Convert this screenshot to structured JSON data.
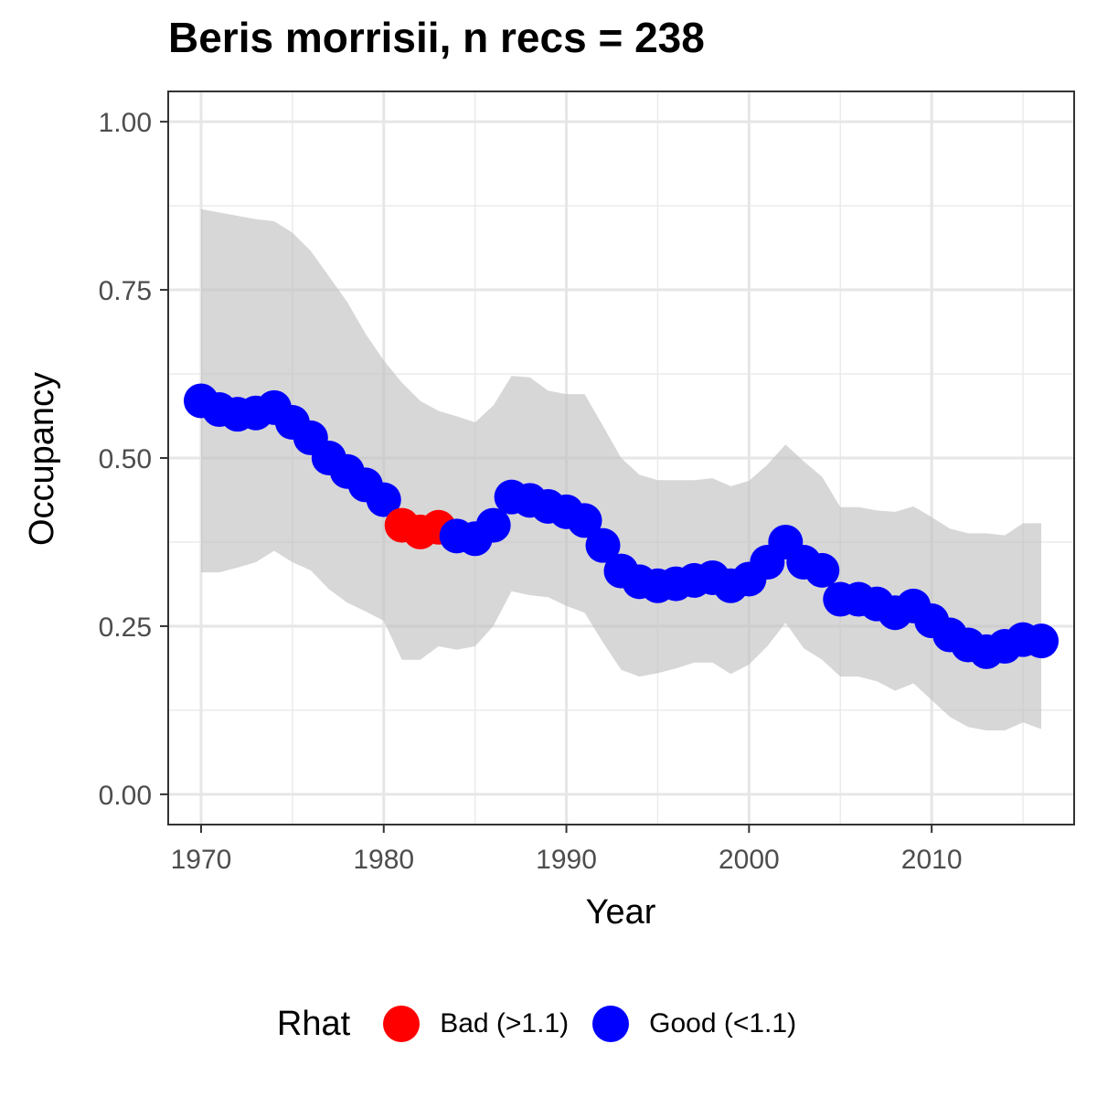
{
  "chart_data": {
    "type": "line",
    "title": "Beris morrisii, n recs = 238",
    "xlabel": "Year",
    "ylabel": "Occupancy",
    "xlim": [
      1968.2,
      2017.8
    ],
    "ylim": [
      -0.045,
      1.045
    ],
    "x_ticks": [
      1970,
      1980,
      1990,
      2000,
      2010
    ],
    "x_tick_labels": [
      "1970",
      "1980",
      "1990",
      "2000",
      "2010"
    ],
    "y_ticks": [
      0.0,
      0.25,
      0.5,
      0.75,
      1.0
    ],
    "y_tick_labels": [
      "0.00",
      "0.25",
      "0.50",
      "0.75",
      "1.00"
    ],
    "grid": true,
    "legend_placement": "bottom",
    "legend": {
      "title": "Rhat",
      "entries": [
        {
          "label": "Bad (>1.1)",
          "color": "#ff0000"
        },
        {
          "label": "Good (<1.1)",
          "color": "#0000ff"
        }
      ]
    },
    "x": [
      1970,
      1971,
      1972,
      1973,
      1974,
      1975,
      1976,
      1977,
      1978,
      1979,
      1980,
      1981,
      1982,
      1983,
      1984,
      1985,
      1986,
      1987,
      1988,
      1989,
      1990,
      1991,
      1992,
      1993,
      1994,
      1995,
      1996,
      1997,
      1998,
      1999,
      2000,
      2001,
      2002,
      2003,
      2004,
      2005,
      2006,
      2007,
      2008,
      2009,
      2010,
      2011,
      2012,
      2013,
      2014,
      2015,
      2016
    ],
    "occupancy": [
      0.585,
      0.572,
      0.565,
      0.567,
      0.575,
      0.553,
      0.53,
      0.5,
      0.48,
      0.46,
      0.438,
      0.4,
      0.39,
      0.397,
      0.384,
      0.38,
      0.4,
      0.442,
      0.437,
      0.428,
      0.42,
      0.407,
      0.37,
      0.332,
      0.316,
      0.31,
      0.313,
      0.318,
      0.322,
      0.31,
      0.32,
      0.345,
      0.375,
      0.345,
      0.333,
      0.29,
      0.29,
      0.283,
      0.27,
      0.28,
      0.258,
      0.237,
      0.222,
      0.212,
      0.22,
      0.23,
      0.228
    ],
    "rhat": [
      "Good",
      "Good",
      "Good",
      "Good",
      "Good",
      "Good",
      "Good",
      "Good",
      "Good",
      "Good",
      "Good",
      "Bad",
      "Bad",
      "Bad",
      "Good",
      "Good",
      "Good",
      "Good",
      "Good",
      "Good",
      "Good",
      "Good",
      "Good",
      "Good",
      "Good",
      "Good",
      "Good",
      "Good",
      "Good",
      "Good",
      "Good",
      "Good",
      "Good",
      "Good",
      "Good",
      "Good",
      "Good",
      "Good",
      "Good",
      "Good",
      "Good",
      "Good",
      "Good",
      "Good",
      "Good",
      "Good",
      "Good"
    ],
    "upper": [
      0.87,
      0.865,
      0.86,
      0.855,
      0.852,
      0.835,
      0.808,
      0.77,
      0.732,
      0.685,
      0.645,
      0.612,
      0.585,
      0.57,
      0.562,
      0.553,
      0.578,
      0.622,
      0.62,
      0.6,
      0.595,
      0.595,
      0.548,
      0.5,
      0.475,
      0.467,
      0.467,
      0.467,
      0.47,
      0.458,
      0.466,
      0.49,
      0.52,
      0.495,
      0.472,
      0.427,
      0.427,
      0.422,
      0.42,
      0.428,
      0.412,
      0.395,
      0.388,
      0.388,
      0.385,
      0.403,
      0.403
    ],
    "lower": [
      0.33,
      0.33,
      0.337,
      0.345,
      0.362,
      0.345,
      0.333,
      0.305,
      0.285,
      0.272,
      0.258,
      0.2,
      0.2,
      0.22,
      0.215,
      0.22,
      0.25,
      0.302,
      0.296,
      0.293,
      0.28,
      0.27,
      0.226,
      0.185,
      0.175,
      0.18,
      0.187,
      0.196,
      0.196,
      0.179,
      0.193,
      0.22,
      0.255,
      0.217,
      0.2,
      0.175,
      0.175,
      0.168,
      0.154,
      0.165,
      0.14,
      0.115,
      0.1,
      0.095,
      0.095,
      0.107,
      0.097
    ]
  }
}
